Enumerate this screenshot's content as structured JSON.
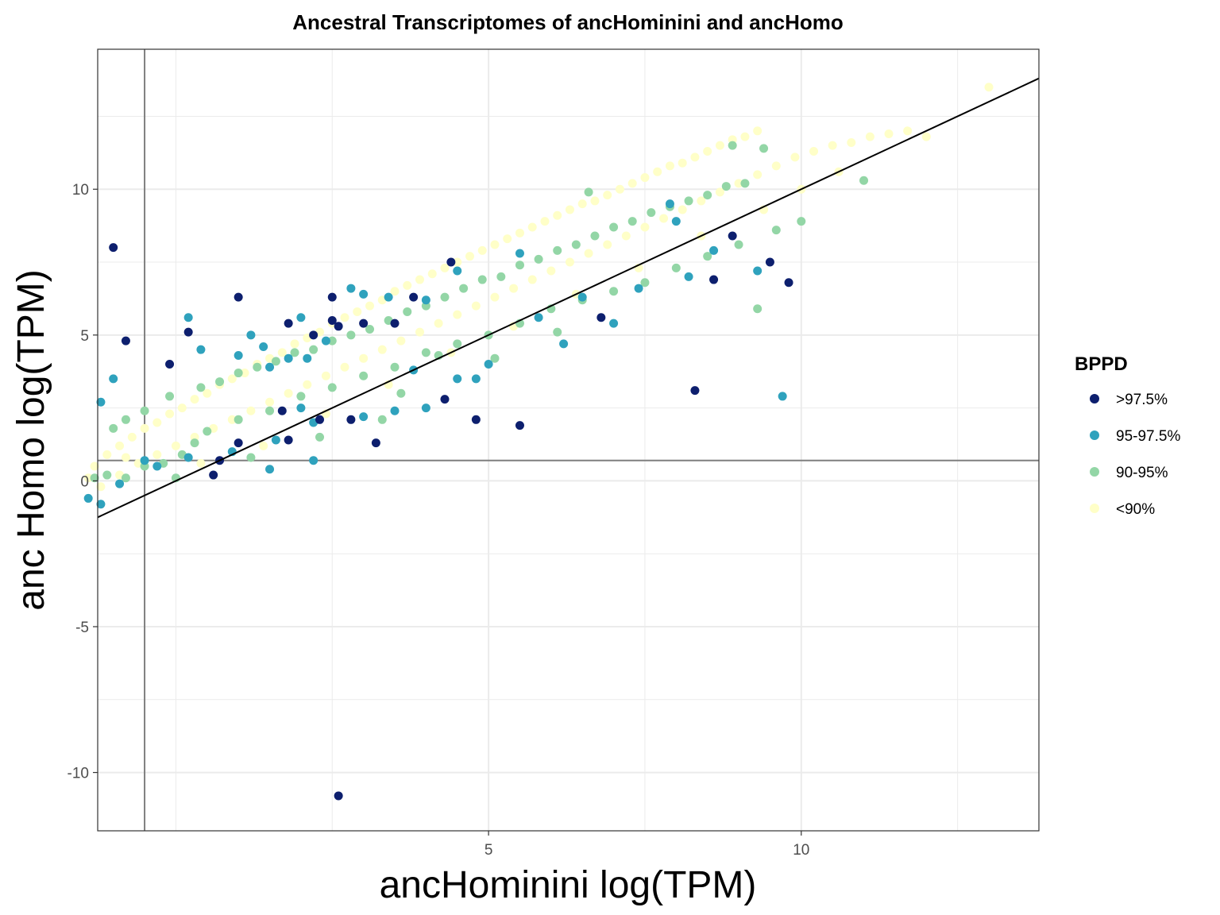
{
  "chart_data": {
    "type": "scatter",
    "title": "Ancestral Transcriptomes of ancHominini and ancHomo",
    "xlabel": "ancHominini log(TPM)",
    "ylabel": "anc Homo log(TPM)",
    "xlim": [
      -1.25,
      13.8
    ],
    "ylim": [
      -12.0,
      14.8
    ],
    "x_ticks": [
      5,
      10
    ],
    "y_ticks": [
      -10,
      -5,
      0,
      5,
      10
    ],
    "x_tick_labels": [
      "5",
      "10"
    ],
    "y_tick_labels": [
      "-10",
      "-5",
      "0",
      "5",
      "10"
    ],
    "grid": true,
    "reference_lines": {
      "vertical_x": -0.5,
      "horizontal_y": 0.7,
      "diagonal": {
        "slope": 1,
        "intercept": 0
      }
    },
    "legend": {
      "title": "BPPD",
      "placement": "right",
      "entries": [
        {
          "label": ">97.5%",
          "color": "#0d1f6e"
        },
        {
          "label": "95-97.5%",
          "color": "#2fa2bd"
        },
        {
          "label": "90-95%",
          "color": "#93d6a6"
        },
        {
          "label": "<90%",
          "color": "#ffffc8"
        }
      ]
    },
    "series": [
      {
        "name": ">97.5%",
        "color": "#0d1f6e",
        "points": [
          [
            -1.0,
            8.0
          ],
          [
            1.0,
            6.3
          ],
          [
            2.6,
            -10.8
          ],
          [
            3.2,
            1.3
          ],
          [
            3.8,
            6.3
          ],
          [
            3.5,
            5.4
          ],
          [
            2.6,
            5.3
          ],
          [
            2.5,
            5.5
          ],
          [
            2.5,
            6.3
          ],
          [
            2.2,
            5.0
          ],
          [
            3.0,
            5.4
          ],
          [
            1.8,
            5.4
          ],
          [
            1.7,
            2.4
          ],
          [
            1.8,
            1.4
          ],
          [
            1.0,
            1.3
          ],
          [
            0.7,
            0.7
          ],
          [
            0.6,
            0.2
          ],
          [
            -0.8,
            4.8
          ],
          [
            -0.1,
            4.0
          ],
          [
            0.2,
            5.1
          ],
          [
            2.8,
            2.1
          ],
          [
            2.3,
            2.1
          ],
          [
            4.4,
            7.5
          ],
          [
            5.5,
            1.9
          ],
          [
            4.8,
            2.1
          ],
          [
            4.3,
            2.8
          ],
          [
            6.8,
            5.6
          ],
          [
            8.3,
            3.1
          ],
          [
            8.6,
            6.9
          ],
          [
            8.9,
            8.4
          ],
          [
            9.5,
            7.5
          ],
          [
            9.8,
            6.8
          ]
        ]
      },
      {
        "name": "95-97.5%",
        "color": "#2fa2bd",
        "points": [
          [
            -1.2,
            -0.8
          ],
          [
            -1.4,
            -0.6
          ],
          [
            -0.9,
            -0.1
          ],
          [
            -1.2,
            2.7
          ],
          [
            -1.0,
            3.5
          ],
          [
            -0.5,
            0.7
          ],
          [
            -0.3,
            0.5
          ],
          [
            0.2,
            5.6
          ],
          [
            0.4,
            4.5
          ],
          [
            1.0,
            4.3
          ],
          [
            1.2,
            5.0
          ],
          [
            1.4,
            4.6
          ],
          [
            1.5,
            3.9
          ],
          [
            1.8,
            4.2
          ],
          [
            2.0,
            5.6
          ],
          [
            2.4,
            4.8
          ],
          [
            2.1,
            4.2
          ],
          [
            2.8,
            6.6
          ],
          [
            3.0,
            6.4
          ],
          [
            3.4,
            6.3
          ],
          [
            4.0,
            6.2
          ],
          [
            4.5,
            7.2
          ],
          [
            2.0,
            2.5
          ],
          [
            2.2,
            2.0
          ],
          [
            3.0,
            2.2
          ],
          [
            3.5,
            2.4
          ],
          [
            3.8,
            3.8
          ],
          [
            4.0,
            2.5
          ],
          [
            4.5,
            3.5
          ],
          [
            4.8,
            3.5
          ],
          [
            5.0,
            4.0
          ],
          [
            5.5,
            7.8
          ],
          [
            5.8,
            5.6
          ],
          [
            6.2,
            4.7
          ],
          [
            6.5,
            6.3
          ],
          [
            7.0,
            5.4
          ],
          [
            7.4,
            6.6
          ],
          [
            7.9,
            9.5
          ],
          [
            8.0,
            8.9
          ],
          [
            8.2,
            7.0
          ],
          [
            8.6,
            7.9
          ],
          [
            9.3,
            7.2
          ],
          [
            9.7,
            2.9
          ],
          [
            1.5,
            0.4
          ],
          [
            2.2,
            0.7
          ],
          [
            0.9,
            1.0
          ],
          [
            0.2,
            0.8
          ],
          [
            1.6,
            1.4
          ]
        ]
      },
      {
        "name": "90-95%",
        "color": "#93d6a6",
        "points": [
          [
            -1.3,
            0.1
          ],
          [
            -1.1,
            0.2
          ],
          [
            -0.8,
            0.1
          ],
          [
            -0.5,
            0.5
          ],
          [
            -0.2,
            0.6
          ],
          [
            0.1,
            0.9
          ],
          [
            0.3,
            1.3
          ],
          [
            -1.0,
            1.8
          ],
          [
            -0.8,
            2.1
          ],
          [
            -0.5,
            2.4
          ],
          [
            -0.1,
            2.9
          ],
          [
            0.4,
            3.2
          ],
          [
            0.7,
            3.4
          ],
          [
            1.0,
            3.7
          ],
          [
            1.3,
            3.9
          ],
          [
            1.6,
            4.1
          ],
          [
            1.9,
            4.4
          ],
          [
            2.2,
            4.5
          ],
          [
            2.5,
            4.8
          ],
          [
            2.8,
            5.0
          ],
          [
            3.1,
            5.2
          ],
          [
            3.4,
            5.5
          ],
          [
            3.7,
            5.8
          ],
          [
            4.0,
            6.0
          ],
          [
            4.3,
            6.3
          ],
          [
            4.6,
            6.6
          ],
          [
            4.9,
            6.9
          ],
          [
            5.2,
            7.0
          ],
          [
            5.5,
            7.4
          ],
          [
            5.8,
            7.6
          ],
          [
            6.1,
            7.9
          ],
          [
            6.4,
            8.1
          ],
          [
            6.7,
            8.4
          ],
          [
            7.0,
            8.7
          ],
          [
            7.3,
            8.9
          ],
          [
            7.6,
            9.2
          ],
          [
            7.9,
            9.4
          ],
          [
            8.2,
            9.6
          ],
          [
            8.5,
            9.8
          ],
          [
            8.8,
            10.1
          ],
          [
            9.1,
            10.2
          ],
          [
            9.4,
            11.4
          ],
          [
            8.9,
            11.5
          ],
          [
            11.0,
            10.3
          ],
          [
            6.6,
            9.9
          ],
          [
            0.5,
            1.7
          ],
          [
            1.0,
            2.1
          ],
          [
            1.5,
            2.4
          ],
          [
            2.0,
            2.9
          ],
          [
            2.5,
            3.2
          ],
          [
            3.0,
            3.6
          ],
          [
            3.5,
            3.9
          ],
          [
            4.0,
            4.4
          ],
          [
            4.5,
            4.7
          ],
          [
            5.0,
            5.0
          ],
          [
            5.5,
            5.4
          ],
          [
            6.0,
            5.9
          ],
          [
            6.5,
            6.2
          ],
          [
            7.0,
            6.5
          ],
          [
            7.5,
            6.8
          ],
          [
            8.0,
            7.3
          ],
          [
            8.5,
            7.7
          ],
          [
            9.0,
            8.1
          ],
          [
            9.6,
            8.6
          ],
          [
            10.0,
            8.9
          ],
          [
            9.3,
            5.9
          ],
          [
            3.6,
            3.0
          ],
          [
            4.2,
            4.3
          ],
          [
            1.2,
            0.8
          ],
          [
            0.0,
            0.1
          ],
          [
            2.3,
            1.5
          ],
          [
            3.3,
            2.1
          ],
          [
            5.1,
            4.2
          ],
          [
            6.1,
            5.1
          ]
        ]
      },
      {
        "name": "<90%",
        "color": "#ffffc8",
        "points": [
          [
            -1.4,
            0.1
          ],
          [
            -1.3,
            0.5
          ],
          [
            -1.1,
            0.9
          ],
          [
            -0.9,
            1.2
          ],
          [
            -0.7,
            1.5
          ],
          [
            -0.5,
            1.8
          ],
          [
            -0.3,
            2.0
          ],
          [
            -0.1,
            2.3
          ],
          [
            0.1,
            2.5
          ],
          [
            0.3,
            2.8
          ],
          [
            0.5,
            3.0
          ],
          [
            0.7,
            3.3
          ],
          [
            0.9,
            3.5
          ],
          [
            1.1,
            3.7
          ],
          [
            1.3,
            4.0
          ],
          [
            1.5,
            4.2
          ],
          [
            1.7,
            4.4
          ],
          [
            1.9,
            4.7
          ],
          [
            2.1,
            4.9
          ],
          [
            2.3,
            5.1
          ],
          [
            2.5,
            5.4
          ],
          [
            2.7,
            5.6
          ],
          [
            2.9,
            5.8
          ],
          [
            3.1,
            6.0
          ],
          [
            3.3,
            6.2
          ],
          [
            3.5,
            6.5
          ],
          [
            3.7,
            6.7
          ],
          [
            3.9,
            6.9
          ],
          [
            4.1,
            7.1
          ],
          [
            4.3,
            7.3
          ],
          [
            4.5,
            7.5
          ],
          [
            4.7,
            7.7
          ],
          [
            4.9,
            7.9
          ],
          [
            5.1,
            8.1
          ],
          [
            5.3,
            8.3
          ],
          [
            5.5,
            8.5
          ],
          [
            5.7,
            8.7
          ],
          [
            5.9,
            8.9
          ],
          [
            6.1,
            9.1
          ],
          [
            6.3,
            9.3
          ],
          [
            6.5,
            9.5
          ],
          [
            6.7,
            9.6
          ],
          [
            6.9,
            9.8
          ],
          [
            7.1,
            10.0
          ],
          [
            7.3,
            10.2
          ],
          [
            7.5,
            10.4
          ],
          [
            7.7,
            10.6
          ],
          [
            7.9,
            10.8
          ],
          [
            8.1,
            10.9
          ],
          [
            8.3,
            11.1
          ],
          [
            8.5,
            11.3
          ],
          [
            8.7,
            11.5
          ],
          [
            8.9,
            11.7
          ],
          [
            9.1,
            11.8
          ],
          [
            9.3,
            12.0
          ],
          [
            -1.2,
            -0.2
          ],
          [
            -0.9,
            0.2
          ],
          [
            -0.6,
            0.6
          ],
          [
            -0.3,
            0.9
          ],
          [
            0.0,
            1.2
          ],
          [
            0.3,
            1.5
          ],
          [
            0.6,
            1.8
          ],
          [
            0.9,
            2.1
          ],
          [
            1.2,
            2.4
          ],
          [
            1.5,
            2.7
          ],
          [
            1.8,
            3.0
          ],
          [
            2.1,
            3.3
          ],
          [
            2.4,
            3.6
          ],
          [
            2.7,
            3.9
          ],
          [
            3.0,
            4.2
          ],
          [
            3.3,
            4.5
          ],
          [
            3.6,
            4.8
          ],
          [
            3.9,
            5.1
          ],
          [
            4.2,
            5.4
          ],
          [
            4.5,
            5.7
          ],
          [
            4.8,
            6.0
          ],
          [
            5.1,
            6.3
          ],
          [
            5.4,
            6.6
          ],
          [
            5.7,
            6.9
          ],
          [
            6.0,
            7.2
          ],
          [
            6.3,
            7.5
          ],
          [
            6.6,
            7.8
          ],
          [
            6.9,
            8.1
          ],
          [
            7.2,
            8.4
          ],
          [
            7.5,
            8.7
          ],
          [
            7.8,
            9.0
          ],
          [
            8.1,
            9.3
          ],
          [
            8.4,
            9.6
          ],
          [
            8.7,
            9.9
          ],
          [
            9.0,
            10.2
          ],
          [
            9.3,
            10.5
          ],
          [
            9.6,
            10.8
          ],
          [
            9.9,
            11.1
          ],
          [
            10.2,
            11.3
          ],
          [
            10.5,
            11.5
          ],
          [
            10.8,
            11.6
          ],
          [
            11.1,
            11.8
          ],
          [
            11.4,
            11.9
          ],
          [
            11.7,
            12.0
          ],
          [
            12.0,
            11.8
          ],
          [
            13.0,
            13.5
          ],
          [
            10.0,
            10.0
          ],
          [
            10.6,
            10.6
          ],
          [
            -0.8,
            0.8
          ],
          [
            0.4,
            0.6
          ],
          [
            1.4,
            1.2
          ],
          [
            2.4,
            2.3
          ],
          [
            3.4,
            3.3
          ],
          [
            4.4,
            4.4
          ],
          [
            5.4,
            5.3
          ],
          [
            6.4,
            6.4
          ],
          [
            7.4,
            7.3
          ],
          [
            8.4,
            8.4
          ],
          [
            9.4,
            9.3
          ]
        ]
      }
    ]
  }
}
